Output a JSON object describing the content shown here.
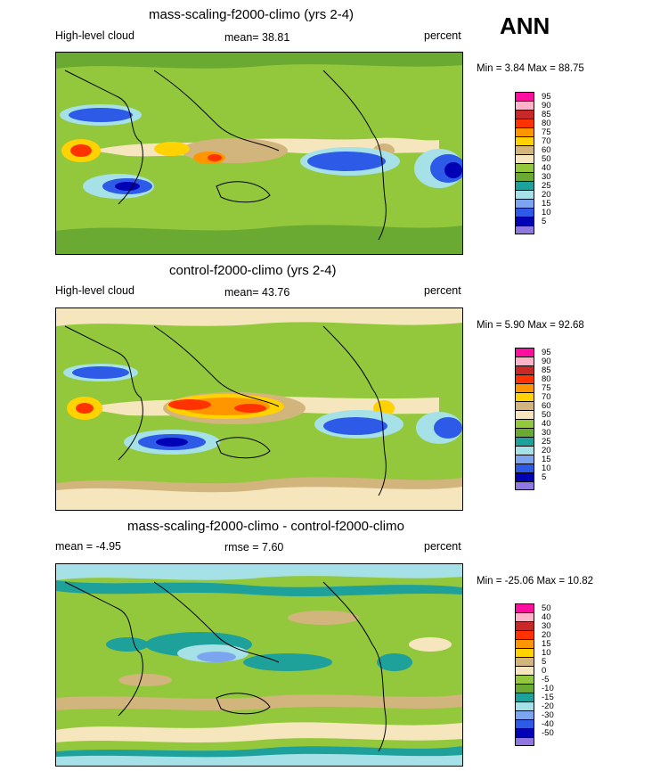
{
  "season": "ANN",
  "panels": [
    {
      "title": "mass-scaling-f2000-climo (yrs 2-4)",
      "left_label": "High-level cloud",
      "center_label": "mean=  38.81",
      "right_label": "percent",
      "minmax": "Min =   3.84 Max =  88.75",
      "colorbar": {
        "labels": [
          "95",
          "90",
          "85",
          "80",
          "75",
          "70",
          "60",
          "50",
          "40",
          "30",
          "25",
          "20",
          "15",
          "10",
          "5"
        ],
        "colors": [
          "#ff0fa0",
          "#ffb3c8",
          "#c82828",
          "#ff3200",
          "#ff9600",
          "#ffd200",
          "#d2b47d",
          "#f5e6be",
          "#94c83c",
          "#6aaa32",
          "#1ea09b",
          "#a5e1e6",
          "#7ca5ef",
          "#2d5ae6",
          "#0000b4",
          "#9178e1"
        ]
      }
    },
    {
      "title": "control-f2000-climo (yrs 2-4)",
      "left_label": "High-level cloud",
      "center_label": "mean=  43.76",
      "right_label": "percent",
      "minmax": "Min =   5.90 Max =  92.68",
      "colorbar": {
        "labels": [
          "95",
          "90",
          "85",
          "80",
          "75",
          "70",
          "60",
          "50",
          "40",
          "30",
          "25",
          "20",
          "15",
          "10",
          "5"
        ],
        "colors": [
          "#ff0fa0",
          "#ffb3c8",
          "#c82828",
          "#ff3200",
          "#ff9600",
          "#ffd200",
          "#d2b47d",
          "#f5e6be",
          "#94c83c",
          "#6aaa32",
          "#1ea09b",
          "#a5e1e6",
          "#7ca5ef",
          "#2d5ae6",
          "#0000b4",
          "#9178e1"
        ]
      }
    },
    {
      "title": "mass-scaling-f2000-climo - control-f2000-climo",
      "left_label": "mean =  -4.95",
      "center_label": "rmse =   7.60",
      "right_label": "percent",
      "minmax": "Min = -25.06 Max =  10.82",
      "colorbar": {
        "labels": [
          "50",
          "40",
          "30",
          "20",
          "15",
          "10",
          "5",
          "0",
          "-5",
          "-10",
          "-15",
          "-20",
          "-30",
          "-40",
          "-50"
        ],
        "colors": [
          "#ff0fa0",
          "#ffb3c8",
          "#c82828",
          "#ff3200",
          "#ff9600",
          "#ffd200",
          "#d2b47d",
          "#f5e6be",
          "#94c83c",
          "#6aaa32",
          "#1ea09b",
          "#a5e1e6",
          "#7ca5ef",
          "#2d5ae6",
          "#0000b4",
          "#9178e1"
        ]
      }
    }
  ]
}
